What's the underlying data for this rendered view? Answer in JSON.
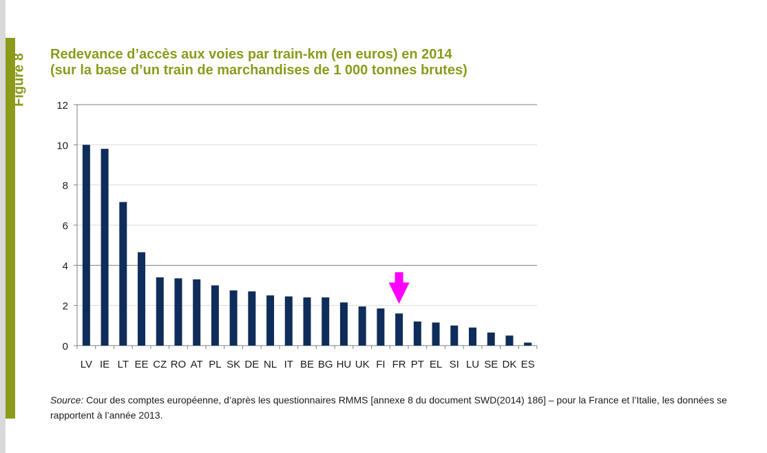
{
  "figure_label": "Figure 8",
  "title_line1": "Redevance d’accès aux voies par train-km (en euros) en 2014",
  "title_line2": "(sur la base d’un train de marchandises de 1 000 tonnes brutes)",
  "source_label": "Source:",
  "source_text": " Cour des comptes européenne, d’après les questionnaires RMMS [annexe 8 du document SWD(2014) 186] – pour la France et l’Italie, les données se rapportent à l’année 2013.",
  "colors": {
    "bar": "#0f2d5a",
    "accent": "#8c9a1b",
    "arrow": "#ff00ff"
  },
  "chart_data": {
    "type": "bar",
    "title": "Redevance d’accès aux voies par train-km (en euros) en 2014",
    "xlabel": "",
    "ylabel": "",
    "ylim": [
      0,
      12
    ],
    "yticks": [
      0,
      2,
      4,
      6,
      8,
      10,
      12
    ],
    "categories": [
      "LV",
      "IE",
      "LT",
      "EE",
      "CZ",
      "RO",
      "AT",
      "PL",
      "SK",
      "DE",
      "NL",
      "IT",
      "BE",
      "BG",
      "HU",
      "UK",
      "FI",
      "FR",
      "PT",
      "EL",
      "SI",
      "LU",
      "SE",
      "DK",
      "ES"
    ],
    "values": [
      10.0,
      9.8,
      7.15,
      4.65,
      3.4,
      3.35,
      3.3,
      3.0,
      2.75,
      2.7,
      2.5,
      2.45,
      2.4,
      2.4,
      2.15,
      1.95,
      1.85,
      1.6,
      1.2,
      1.15,
      1.0,
      0.9,
      0.65,
      0.5,
      0.15
    ],
    "highlight": "FR",
    "grid": true
  }
}
